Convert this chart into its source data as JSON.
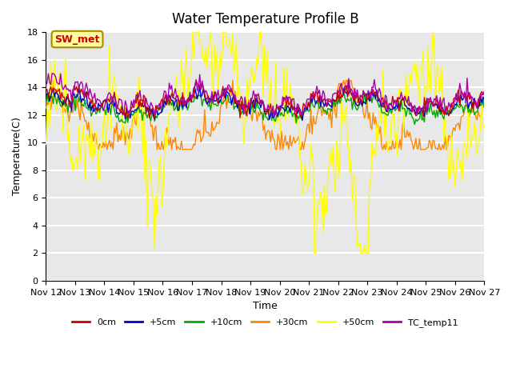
{
  "title": "Water Temperature Profile B",
  "xlabel": "Time",
  "ylabel": "Temperature(C)",
  "ylim": [
    0,
    18
  ],
  "yticks": [
    0,
    2,
    4,
    6,
    8,
    10,
    12,
    14,
    16,
    18
  ],
  "date_labels": [
    "Nov 12",
    "Nov 13",
    "Nov 14",
    "Nov 15",
    "Nov 16",
    "Nov 17",
    "Nov 18",
    "Nov 19",
    "Nov 20",
    "Nov 21",
    "Nov 22",
    "Nov 23",
    "Nov 24",
    "Nov 25",
    "Nov 26",
    "Nov 27"
  ],
  "legend_labels": [
    "0cm",
    "+5cm",
    "+10cm",
    "+30cm",
    "+50cm",
    "TC_temp11"
  ],
  "colors": [
    "#cc0000",
    "#0000cc",
    "#00aa00",
    "#ff8800",
    "#ffff00",
    "#aa00aa"
  ],
  "annotation_text": "SW_met",
  "annotation_color": "#cc0000",
  "annotation_bg": "#ffff99",
  "annotation_border": "#aa8800",
  "n_points": 360,
  "background_color": "#e8e8e8",
  "grid_color": "#ffffff"
}
